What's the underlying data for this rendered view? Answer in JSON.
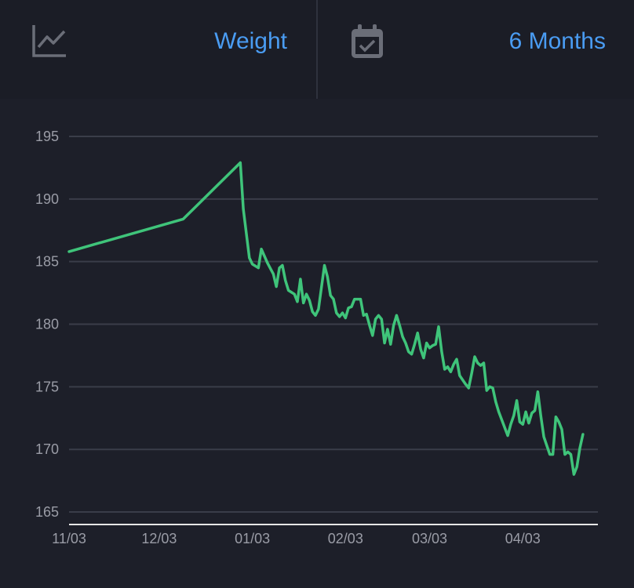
{
  "header": {
    "metric_icon": "line-chart-icon",
    "metric_label": "Weight",
    "range_icon": "calendar-check-icon",
    "range_label": "6 Months"
  },
  "colors": {
    "background": "#1d1f29",
    "accent": "#4a9cf2",
    "series": "#3fc47a",
    "grid": "#3a3d49",
    "axis": "#e6e6e6",
    "icon": "#6b6e78"
  },
  "chart_data": {
    "type": "line",
    "title": "",
    "xlabel": "",
    "ylabel": "",
    "ylim": [
      164,
      195.5
    ],
    "yticks": [
      195,
      190,
      185,
      180,
      175,
      170,
      165
    ],
    "xlim": [
      0,
      176
    ],
    "xticks": [
      {
        "label": "11/03",
        "x": 0
      },
      {
        "label": "12/03",
        "x": 30
      },
      {
        "label": "01/03",
        "x": 61
      },
      {
        "label": "02/03",
        "x": 92
      },
      {
        "label": "03/03",
        "x": 120
      },
      {
        "label": "04/03",
        "x": 151
      }
    ],
    "grid": true,
    "legend": "none",
    "series": [
      {
        "name": "Weight",
        "points": [
          [
            0,
            185.8
          ],
          [
            38,
            188.4
          ],
          [
            57,
            192.9
          ],
          [
            58,
            189.2
          ],
          [
            60,
            185.3
          ],
          [
            61,
            184.8
          ],
          [
            63,
            184.5
          ],
          [
            64,
            186.0
          ],
          [
            66,
            184.9
          ],
          [
            68,
            184.0
          ],
          [
            69,
            183.0
          ],
          [
            70,
            184.5
          ],
          [
            71,
            184.7
          ],
          [
            72,
            183.5
          ],
          [
            73,
            182.7
          ],
          [
            75,
            182.4
          ],
          [
            76,
            181.8
          ],
          [
            77,
            183.6
          ],
          [
            78,
            181.7
          ],
          [
            79,
            182.4
          ],
          [
            80,
            181.9
          ],
          [
            81,
            181.0
          ],
          [
            82,
            180.7
          ],
          [
            83,
            181.2
          ],
          [
            85,
            184.7
          ],
          [
            86,
            183.8
          ],
          [
            87,
            182.3
          ],
          [
            88,
            182.0
          ],
          [
            89,
            180.9
          ],
          [
            90,
            180.6
          ],
          [
            91,
            180.9
          ],
          [
            92,
            180.5
          ],
          [
            93,
            181.3
          ],
          [
            94,
            181.4
          ],
          [
            95,
            182.0
          ],
          [
            97,
            182.0
          ],
          [
            98,
            180.7
          ],
          [
            99,
            180.8
          ],
          [
            100,
            179.9
          ],
          [
            101,
            179.1
          ],
          [
            102,
            180.4
          ],
          [
            103,
            180.7
          ],
          [
            104,
            180.4
          ],
          [
            105,
            178.5
          ],
          [
            106,
            179.6
          ],
          [
            107,
            178.4
          ],
          [
            108,
            179.9
          ],
          [
            109,
            180.7
          ],
          [
            110,
            179.9
          ],
          [
            111,
            179.0
          ],
          [
            112,
            178.5
          ],
          [
            113,
            177.8
          ],
          [
            114,
            177.6
          ],
          [
            115,
            178.4
          ],
          [
            116,
            179.3
          ],
          [
            117,
            178.0
          ],
          [
            118,
            177.3
          ],
          [
            119,
            178.5
          ],
          [
            120,
            178.1
          ],
          [
            121,
            178.3
          ],
          [
            122,
            178.4
          ],
          [
            123,
            179.8
          ],
          [
            124,
            177.8
          ],
          [
            125,
            176.4
          ],
          [
            126,
            176.6
          ],
          [
            127,
            176.2
          ],
          [
            128,
            176.8
          ],
          [
            129,
            177.2
          ],
          [
            130,
            175.9
          ],
          [
            132,
            175.2
          ],
          [
            133,
            174.9
          ],
          [
            134,
            176.1
          ],
          [
            135,
            177.4
          ],
          [
            136,
            176.9
          ],
          [
            137,
            176.7
          ],
          [
            138,
            176.9
          ],
          [
            139,
            174.7
          ],
          [
            140,
            175.0
          ],
          [
            141,
            174.9
          ],
          [
            142,
            173.8
          ],
          [
            143,
            173.0
          ],
          [
            146,
            171.1
          ],
          [
            147,
            172.0
          ],
          [
            148,
            172.7
          ],
          [
            149,
            173.9
          ],
          [
            150,
            172.2
          ],
          [
            151,
            172.0
          ],
          [
            152,
            173.0
          ],
          [
            153,
            172.1
          ],
          [
            154,
            172.9
          ],
          [
            155,
            173.1
          ],
          [
            156,
            174.6
          ],
          [
            157,
            172.7
          ],
          [
            158,
            171.0
          ],
          [
            159,
            170.3
          ],
          [
            160,
            169.6
          ],
          [
            161,
            169.6
          ],
          [
            162,
            172.6
          ],
          [
            163,
            172.2
          ],
          [
            164,
            171.6
          ],
          [
            165,
            169.6
          ],
          [
            166,
            169.8
          ],
          [
            167,
            169.6
          ],
          [
            168,
            168.0
          ],
          [
            169,
            168.6
          ],
          [
            170,
            170.1
          ],
          [
            171,
            171.2
          ]
        ]
      }
    ]
  }
}
